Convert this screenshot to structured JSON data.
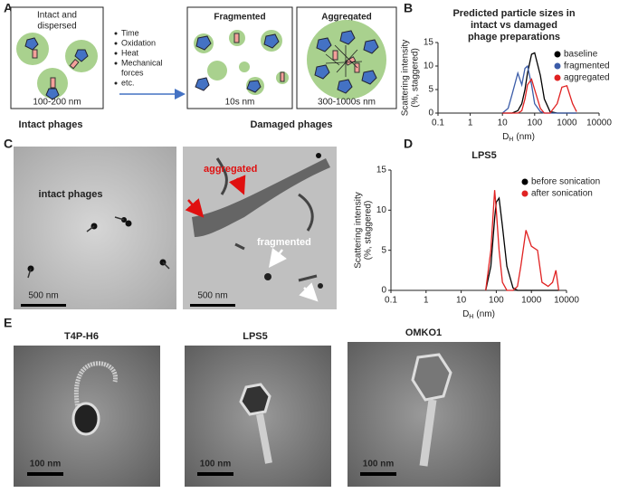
{
  "panel_labels": [
    "A",
    "B",
    "C",
    "D",
    "E"
  ],
  "panel_a": {
    "intact_title": [
      "Intact and",
      "dispersed"
    ],
    "intact_size": "100-200 nm",
    "factors": [
      "Time",
      "Oxidation",
      "Heat",
      "Mechanical",
      "forces",
      "etc."
    ],
    "fragmented_title": "Fragmented",
    "fragmented_size": "10s nm",
    "aggregated_title": "Aggregated",
    "aggregated_size": "300-1000s nm",
    "intact_caption": "Intact phages",
    "damaged_caption": "Damaged phages"
  },
  "panel_c": {
    "left_label": "intact phages",
    "left_scale": "500 nm",
    "right_aggregated": "aggregated",
    "right_fragmented": "fragmented",
    "right_scale": "500 nm"
  },
  "panel_e": {
    "titles": [
      "T4P-H6",
      "LPS5",
      "OMKO1"
    ],
    "scales": [
      "100 nm",
      "100 nm",
      "100 nm"
    ]
  },
  "chart_data": [
    {
      "type": "line",
      "title": [
        "Predicted particle sizes in",
        "intact vs damaged",
        "phage preparations"
      ],
      "y_label": [
        "Scattering intensity",
        "(%, staggered)"
      ],
      "x_label": [
        "D",
        "H",
        "(nm)"
      ],
      "x": [
        10,
        15,
        20,
        30,
        40,
        50,
        60,
        80,
        100,
        150,
        200,
        300,
        500,
        700,
        1000,
        1500,
        2000
      ],
      "series": [
        {
          "name": "baseline",
          "color": "#000000",
          "values": [
            0,
            0,
            0,
            0.5,
            2,
            5,
            8.5,
            12.5,
            12.8,
            8,
            3,
            0.3,
            0,
            0,
            0,
            0,
            0
          ]
        },
        {
          "name": "fragmented",
          "color": "#3b5ca8",
          "values": [
            0,
            1,
            4,
            8.5,
            6,
            9.5,
            10,
            6,
            2,
            0.3,
            0,
            0,
            0,
            0,
            0,
            0,
            0
          ]
        },
        {
          "name": "aggregated",
          "color": "#e02222",
          "values": [
            0,
            0,
            0,
            0,
            0.5,
            3,
            6,
            7.2,
            5,
            1,
            0,
            0,
            2,
            5.5,
            5.8,
            2,
            0.3
          ]
        }
      ],
      "xlim": [
        0.1,
        10000
      ],
      "xticks": [
        0.1,
        1,
        10,
        100,
        1000,
        10000
      ],
      "log_x": true,
      "ylim": [
        0,
        15
      ],
      "yticks": [
        0,
        5,
        10,
        15
      ],
      "grid": false,
      "legend": "upper right"
    },
    {
      "type": "line",
      "title": [
        "LPS5"
      ],
      "y_label": [
        "Scattering intensity",
        "(%, staggered)"
      ],
      "x_label": [
        "D",
        "H",
        "(nm)"
      ],
      "x": [
        50,
        70,
        90,
        100,
        120,
        150,
        200,
        300,
        400,
        500,
        700,
        1000,
        1500,
        2000,
        3000,
        4000,
        5000,
        6000
      ],
      "series": [
        {
          "name": "before sonication",
          "color": "#000000",
          "values": [
            0,
            3,
            9,
            11,
            11.5,
            8,
            3,
            0.3,
            0,
            0,
            0,
            0,
            0,
            0,
            0,
            0,
            0,
            0
          ]
        },
        {
          "name": "after sonication",
          "color": "#e02222",
          "values": [
            0,
            5,
            12.5,
            10,
            5,
            1,
            0,
            0,
            0.5,
            3,
            7.5,
            5.5,
            5,
            1,
            0.5,
            1,
            2.5,
            0
          ]
        }
      ],
      "xlim": [
        0.1,
        10000
      ],
      "xticks": [
        0.1,
        1,
        10,
        100,
        1000,
        10000
      ],
      "log_x": true,
      "ylim": [
        0,
        15
      ],
      "yticks": [
        0,
        5,
        10,
        15
      ],
      "grid": false,
      "legend": "upper right"
    }
  ]
}
